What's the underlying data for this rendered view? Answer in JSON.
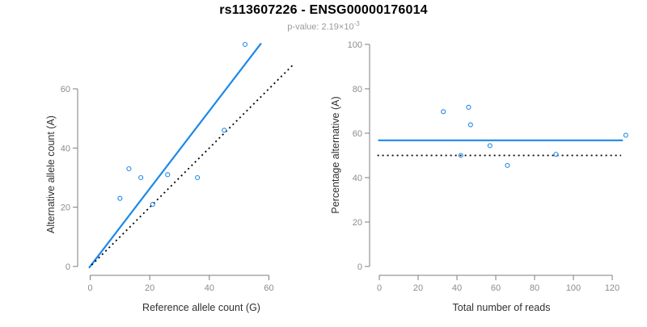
{
  "header": {
    "title": "rs113607226 - ENSG00000176014",
    "pvalue_prefix": "p-value: 2.19×10",
    "pvalue_exponent": "-3"
  },
  "colors": {
    "fit_line_blue": "#1E88E8",
    "point_stroke_blue": "#1E88E8",
    "reference_line_black": "#000000",
    "axis_line_gray": "#7d7d7d",
    "tick_label_gray": "#8c8c8c",
    "axis_title_dark": "#303030",
    "title_black": "#000000",
    "subtitle_gray": "#9a9a9a",
    "background_white": "#ffffff"
  },
  "chart_data": [
    {
      "type": "scatter",
      "panel": "left",
      "xlabel": "Reference allele count (G)",
      "ylabel": "Alternative allele count (A)",
      "xticks": [
        0,
        20,
        40,
        60
      ],
      "yticks": [
        0,
        20,
        40,
        60
      ],
      "xlim": [
        0,
        68
      ],
      "ylim": [
        0,
        76
      ],
      "grid": false,
      "legend": false,
      "marker": "open-circle",
      "points": [
        [
          10,
          23
        ],
        [
          13,
          33
        ],
        [
          17,
          30
        ],
        [
          21,
          21
        ],
        [
          26,
          31
        ],
        [
          36,
          30
        ],
        [
          45,
          46
        ],
        [
          52,
          75
        ]
      ],
      "lines": [
        {
          "name": "fit-line",
          "style": "solid",
          "color": "#1E88E8",
          "x1": -0.4,
          "y1": -0.5,
          "x2": 57.4,
          "y2": 75.4
        },
        {
          "name": "identity-line",
          "style": "dotted",
          "color": "#000000",
          "x1": 0.5,
          "y1": 0.5,
          "x2": 68.5,
          "y2": 68.5
        }
      ]
    },
    {
      "type": "scatter",
      "panel": "right",
      "xlabel": "Total number of reads",
      "ylabel": "Percentage alternative (A)",
      "xticks": [
        0,
        20,
        40,
        60,
        80,
        100,
        120
      ],
      "yticks": [
        0,
        20,
        40,
        60,
        80,
        100
      ],
      "xlim": [
        0,
        127
      ],
      "ylim": [
        0,
        100
      ],
      "grid": false,
      "legend": false,
      "marker": "open-circle",
      "points": [
        [
          33,
          69.7
        ],
        [
          42,
          50.0
        ],
        [
          46,
          71.7
        ],
        [
          47,
          63.8
        ],
        [
          57,
          54.4
        ],
        [
          66,
          45.5
        ],
        [
          91,
          50.5
        ],
        [
          127,
          59.1
        ]
      ],
      "lines": [
        {
          "name": "mean-percentage-line",
          "style": "solid",
          "color": "#1E88E8",
          "x1": -0.6,
          "y1": 56.8,
          "x2": 125.5,
          "y2": 56.8
        },
        {
          "name": "fifty-percent-line",
          "style": "dotted",
          "color": "#000000",
          "x1": -1.0,
          "y1": 50,
          "x2": 124.6,
          "y2": 50
        }
      ]
    }
  ]
}
